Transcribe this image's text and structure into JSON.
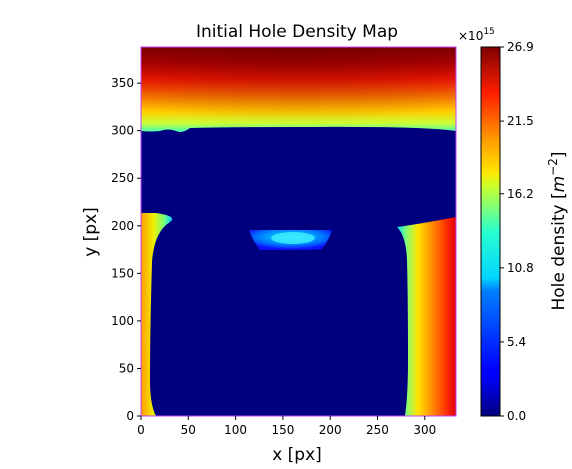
{
  "chart_data": {
    "type": "heatmap",
    "title": "Initial Hole Density Map",
    "xlabel": "x [px]",
    "ylabel": "y [px]",
    "xlim": [
      0,
      333
    ],
    "ylim": [
      0,
      388
    ],
    "x_ticks": [
      "0",
      "50",
      "100",
      "150",
      "200",
      "250",
      "300"
    ],
    "x_tick_values": [
      0,
      50,
      100,
      150,
      200,
      250,
      300
    ],
    "y_ticks": [
      "0",
      "50",
      "100",
      "150",
      "200",
      "250",
      "300",
      "350"
    ],
    "y_tick_values": [
      0,
      50,
      100,
      150,
      200,
      250,
      300,
      350
    ],
    "grid": false,
    "colormap": "jet",
    "colorbar": {
      "label": "Hole density",
      "unit": "m",
      "unit_exponent": "−2",
      "multiplier": "×10",
      "multiplier_exponent": "15",
      "range": [
        0.0,
        26.9
      ],
      "ticks": [
        "0.0",
        "5.4",
        "10.8",
        "16.2",
        "21.5",
        "26.9"
      ],
      "tick_values": [
        0.0,
        5.4,
        10.8,
        16.2,
        21.5,
        26.9
      ]
    },
    "regions": [
      {
        "name": "top-band",
        "x_range": [
          0,
          333
        ],
        "y_range": [
          300,
          388
        ],
        "value_range": [
          14,
          26.9
        ]
      },
      {
        "name": "left-strip",
        "x_range": [
          0,
          15
        ],
        "y_range": [
          0,
          212
        ],
        "value_range": [
          12,
          22
        ]
      },
      {
        "name": "right-strip",
        "x_range": [
          275,
          333
        ],
        "y_range": [
          0,
          207
        ],
        "value_range": [
          12,
          25
        ]
      },
      {
        "name": "central-island",
        "x_range": [
          115,
          200
        ],
        "y_range": [
          175,
          197
        ],
        "value_range": [
          3,
          10
        ]
      },
      {
        "name": "background",
        "value": 0.0
      }
    ]
  }
}
